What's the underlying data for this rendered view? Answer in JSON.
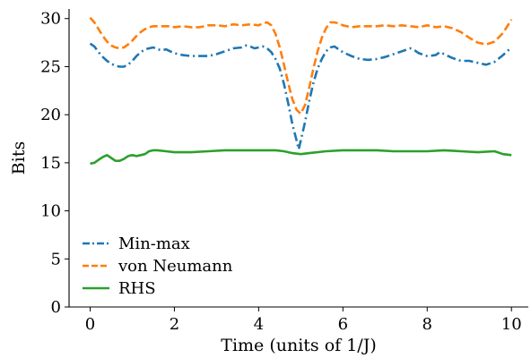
{
  "chart_data": {
    "type": "line",
    "title": "",
    "xlabel": "Time (units of 1/J)",
    "ylabel": "Bits",
    "xlim": [
      -0.5,
      10.4
    ],
    "ylim": [
      0,
      31
    ],
    "xticks": [
      0,
      2,
      4,
      6,
      8,
      10
    ],
    "yticks": [
      0,
      5,
      10,
      15,
      20,
      25,
      30
    ],
    "grid": false,
    "legend_position": "lower-left",
    "series": [
      {
        "name": "Min-max",
        "color": "#1f77b4",
        "linestyle": "dashdot",
        "points": [
          [
            0,
            27.4
          ],
          [
            0.1,
            27.1
          ],
          [
            0.2,
            26.5
          ],
          [
            0.3,
            26.0
          ],
          [
            0.4,
            25.6
          ],
          [
            0.5,
            25.3
          ],
          [
            0.6,
            25.1
          ],
          [
            0.7,
            25.0
          ],
          [
            0.8,
            25.0
          ],
          [
            0.9,
            25.2
          ],
          [
            1.0,
            25.6
          ],
          [
            1.1,
            26.1
          ],
          [
            1.2,
            26.5
          ],
          [
            1.3,
            26.8
          ],
          [
            1.4,
            26.9
          ],
          [
            1.5,
            27.0
          ],
          [
            1.6,
            26.8
          ],
          [
            1.7,
            26.7
          ],
          [
            1.8,
            26.8
          ],
          [
            1.9,
            26.6
          ],
          [
            2.0,
            26.4
          ],
          [
            2.2,
            26.2
          ],
          [
            2.4,
            26.1
          ],
          [
            2.6,
            26.1
          ],
          [
            2.8,
            26.1
          ],
          [
            3.0,
            26.3
          ],
          [
            3.2,
            26.6
          ],
          [
            3.4,
            26.9
          ],
          [
            3.6,
            27.0
          ],
          [
            3.7,
            27.2
          ],
          [
            3.8,
            27.1
          ],
          [
            3.9,
            26.9
          ],
          [
            4.0,
            27.0
          ],
          [
            4.1,
            27.1
          ],
          [
            4.2,
            26.9
          ],
          [
            4.3,
            26.5
          ],
          [
            4.4,
            25.8
          ],
          [
            4.5,
            24.8
          ],
          [
            4.6,
            23.2
          ],
          [
            4.7,
            21.2
          ],
          [
            4.8,
            19.0
          ],
          [
            4.9,
            17.3
          ],
          [
            4.95,
            16.4
          ],
          [
            5.0,
            17.3
          ],
          [
            5.1,
            19.2
          ],
          [
            5.2,
            21.4
          ],
          [
            5.3,
            23.3
          ],
          [
            5.4,
            24.8
          ],
          [
            5.5,
            25.8
          ],
          [
            5.6,
            26.6
          ],
          [
            5.7,
            27.0
          ],
          [
            5.8,
            27.1
          ],
          [
            5.9,
            26.8
          ],
          [
            6.0,
            26.5
          ],
          [
            6.2,
            26.1
          ],
          [
            6.4,
            25.8
          ],
          [
            6.6,
            25.7
          ],
          [
            6.8,
            25.8
          ],
          [
            7.0,
            26.0
          ],
          [
            7.2,
            26.3
          ],
          [
            7.4,
            26.6
          ],
          [
            7.6,
            26.9
          ],
          [
            7.7,
            26.7
          ],
          [
            7.8,
            26.4
          ],
          [
            8.0,
            26.1
          ],
          [
            8.2,
            26.2
          ],
          [
            8.3,
            26.5
          ],
          [
            8.4,
            26.3
          ],
          [
            8.6,
            25.9
          ],
          [
            8.8,
            25.6
          ],
          [
            9.0,
            25.6
          ],
          [
            9.2,
            25.4
          ],
          [
            9.4,
            25.2
          ],
          [
            9.6,
            25.5
          ],
          [
            9.8,
            26.2
          ],
          [
            10.0,
            27.0
          ]
        ]
      },
      {
        "name": "von Neumann",
        "color": "#ff7f0e",
        "linestyle": "dashed",
        "points": [
          [
            0,
            30.1
          ],
          [
            0.1,
            29.6
          ],
          [
            0.2,
            28.9
          ],
          [
            0.3,
            28.2
          ],
          [
            0.4,
            27.6
          ],
          [
            0.5,
            27.2
          ],
          [
            0.6,
            27.0
          ],
          [
            0.7,
            26.9
          ],
          [
            0.8,
            27.0
          ],
          [
            0.9,
            27.3
          ],
          [
            1.0,
            27.7
          ],
          [
            1.1,
            28.2
          ],
          [
            1.2,
            28.6
          ],
          [
            1.3,
            28.9
          ],
          [
            1.4,
            29.1
          ],
          [
            1.5,
            29.2
          ],
          [
            1.7,
            29.2
          ],
          [
            1.9,
            29.2
          ],
          [
            2.0,
            29.1
          ],
          [
            2.2,
            29.2
          ],
          [
            2.4,
            29.1
          ],
          [
            2.6,
            29.1
          ],
          [
            2.8,
            29.3
          ],
          [
            3.0,
            29.3
          ],
          [
            3.2,
            29.2
          ],
          [
            3.4,
            29.4
          ],
          [
            3.6,
            29.3
          ],
          [
            3.8,
            29.4
          ],
          [
            4.0,
            29.3
          ],
          [
            4.1,
            29.5
          ],
          [
            4.2,
            29.6
          ],
          [
            4.3,
            29.3
          ],
          [
            4.4,
            28.4
          ],
          [
            4.5,
            27.0
          ],
          [
            4.6,
            25.2
          ],
          [
            4.7,
            23.3
          ],
          [
            4.8,
            21.6
          ],
          [
            4.9,
            20.5
          ],
          [
            5.0,
            20.1
          ],
          [
            5.1,
            21.0
          ],
          [
            5.2,
            22.8
          ],
          [
            5.3,
            24.8
          ],
          [
            5.4,
            26.6
          ],
          [
            5.5,
            28.0
          ],
          [
            5.6,
            29.0
          ],
          [
            5.7,
            29.6
          ],
          [
            5.8,
            29.6
          ],
          [
            5.9,
            29.5
          ],
          [
            6.0,
            29.3
          ],
          [
            6.2,
            29.1
          ],
          [
            6.4,
            29.2
          ],
          [
            6.6,
            29.2
          ],
          [
            6.8,
            29.2
          ],
          [
            7.0,
            29.3
          ],
          [
            7.2,
            29.2
          ],
          [
            7.4,
            29.3
          ],
          [
            7.6,
            29.2
          ],
          [
            7.8,
            29.1
          ],
          [
            8.0,
            29.3
          ],
          [
            8.2,
            29.1
          ],
          [
            8.4,
            29.2
          ],
          [
            8.6,
            29.0
          ],
          [
            8.8,
            28.6
          ],
          [
            9.0,
            28.0
          ],
          [
            9.2,
            27.5
          ],
          [
            9.4,
            27.3
          ],
          [
            9.6,
            27.6
          ],
          [
            9.8,
            28.5
          ],
          [
            10.0,
            29.9
          ]
        ]
      },
      {
        "name": "RHS",
        "color": "#2ca02c",
        "linestyle": "solid",
        "points": [
          [
            0,
            14.9
          ],
          [
            0.1,
            15.0
          ],
          [
            0.2,
            15.3
          ],
          [
            0.3,
            15.6
          ],
          [
            0.4,
            15.8
          ],
          [
            0.5,
            15.5
          ],
          [
            0.6,
            15.2
          ],
          [
            0.7,
            15.2
          ],
          [
            0.8,
            15.4
          ],
          [
            0.9,
            15.7
          ],
          [
            1.0,
            15.8
          ],
          [
            1.1,
            15.7
          ],
          [
            1.2,
            15.8
          ],
          [
            1.3,
            15.9
          ],
          [
            1.4,
            16.2
          ],
          [
            1.5,
            16.3
          ],
          [
            1.6,
            16.3
          ],
          [
            1.8,
            16.2
          ],
          [
            2.0,
            16.1
          ],
          [
            2.4,
            16.1
          ],
          [
            2.8,
            16.2
          ],
          [
            3.2,
            16.3
          ],
          [
            3.6,
            16.3
          ],
          [
            4.0,
            16.3
          ],
          [
            4.4,
            16.3
          ],
          [
            4.6,
            16.2
          ],
          [
            4.8,
            16.0
          ],
          [
            5.0,
            15.9
          ],
          [
            5.2,
            16.0
          ],
          [
            5.6,
            16.2
          ],
          [
            6.0,
            16.3
          ],
          [
            6.4,
            16.3
          ],
          [
            6.8,
            16.3
          ],
          [
            7.2,
            16.2
          ],
          [
            7.6,
            16.2
          ],
          [
            8.0,
            16.2
          ],
          [
            8.4,
            16.3
          ],
          [
            8.8,
            16.2
          ],
          [
            9.2,
            16.1
          ],
          [
            9.6,
            16.2
          ],
          [
            9.8,
            15.9
          ],
          [
            10.0,
            15.8
          ]
        ]
      }
    ]
  }
}
